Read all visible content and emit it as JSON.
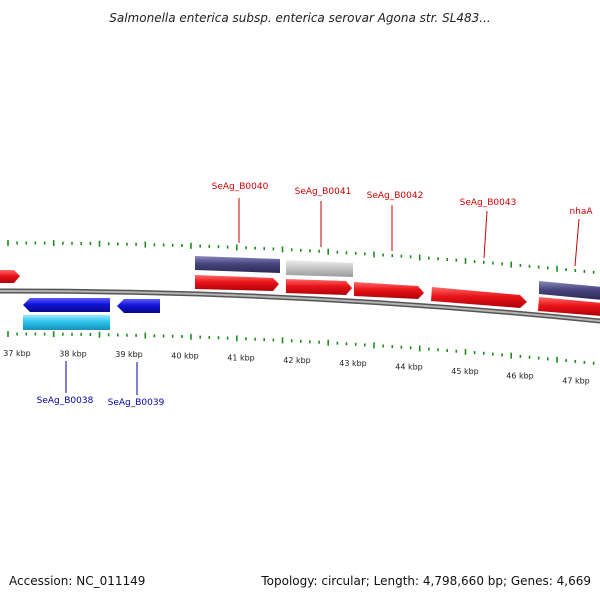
{
  "title": "Salmonella enterica subsp. enterica serovar Agona str. SL483...",
  "footer": {
    "accession": "Accession: NC_011149",
    "summary": "Topology: circular; Length: 4,798,660 bp; Genes: 4,669"
  },
  "colors": {
    "forward_gene": "#e8141a",
    "reverse_gene": "#1414d8",
    "reverse_light": "#2cc4ee",
    "slate": "#47467e",
    "grey_block": "#c4c4c4",
    "backbone": "#8a8a8a",
    "tick": "#1e8c1e",
    "label_red": "#cc0000",
    "label_blue": "#0000aa"
  },
  "scale": {
    "ticks": [
      "37 kbp",
      "38 kbp",
      "39 kbp",
      "40 kbp",
      "41 kbp",
      "42 kbp",
      "43 kbp",
      "44 kbp",
      "45 kbp",
      "46 kbp",
      "47 kbp"
    ]
  },
  "genes_top": [
    {
      "name": "SeAg_B0040"
    },
    {
      "name": "SeAg_B0041"
    },
    {
      "name": "SeAg_B0042"
    },
    {
      "name": "SeAg_B0043"
    },
    {
      "name": "nhaA"
    }
  ],
  "genes_bottom": [
    {
      "name": "SeAg_B0038"
    },
    {
      "name": "SeAg_B0039"
    }
  ]
}
